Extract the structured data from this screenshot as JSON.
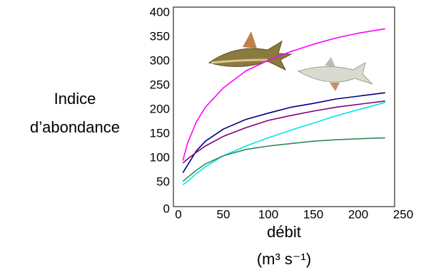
{
  "chart_data": {
    "type": "line",
    "ylabel": [
      "Indice",
      "d’abondance"
    ],
    "xlabel": "débit",
    "xlabel_unit": "(m³ s⁻¹)",
    "x": [
      5,
      10,
      20,
      30,
      50,
      75,
      100,
      125,
      150,
      175,
      200,
      230
    ],
    "series": [
      {
        "color": "#ff00ff",
        "values": [
          95,
          130,
          175,
          205,
          245,
          280,
          302,
          320,
          335,
          348,
          358,
          367
        ]
      },
      {
        "color": "#000080",
        "values": [
          70,
          85,
          115,
          135,
          160,
          180,
          193,
          205,
          213,
          222,
          228,
          235
        ]
      },
      {
        "color": "#800080",
        "values": [
          90,
          98,
          112,
          125,
          145,
          163,
          178,
          188,
          197,
          205,
          211,
          218
        ]
      },
      {
        "color": "#00e5ee",
        "values": [
          45,
          52,
          68,
          82,
          105,
          125,
          142,
          158,
          172,
          187,
          200,
          215
        ]
      },
      {
        "color": "#2e8b57",
        "values": [
          52,
          60,
          75,
          88,
          105,
          118,
          125,
          130,
          135,
          138,
          140,
          142
        ]
      }
    ],
    "xlim": [
      0,
      250
    ],
    "xticks": [
      0,
      50,
      100,
      150,
      200,
      250
    ],
    "ylim": [
      0,
      400
    ],
    "yticks": [
      0,
      50,
      100,
      150,
      200,
      250,
      300,
      350,
      400
    ]
  }
}
